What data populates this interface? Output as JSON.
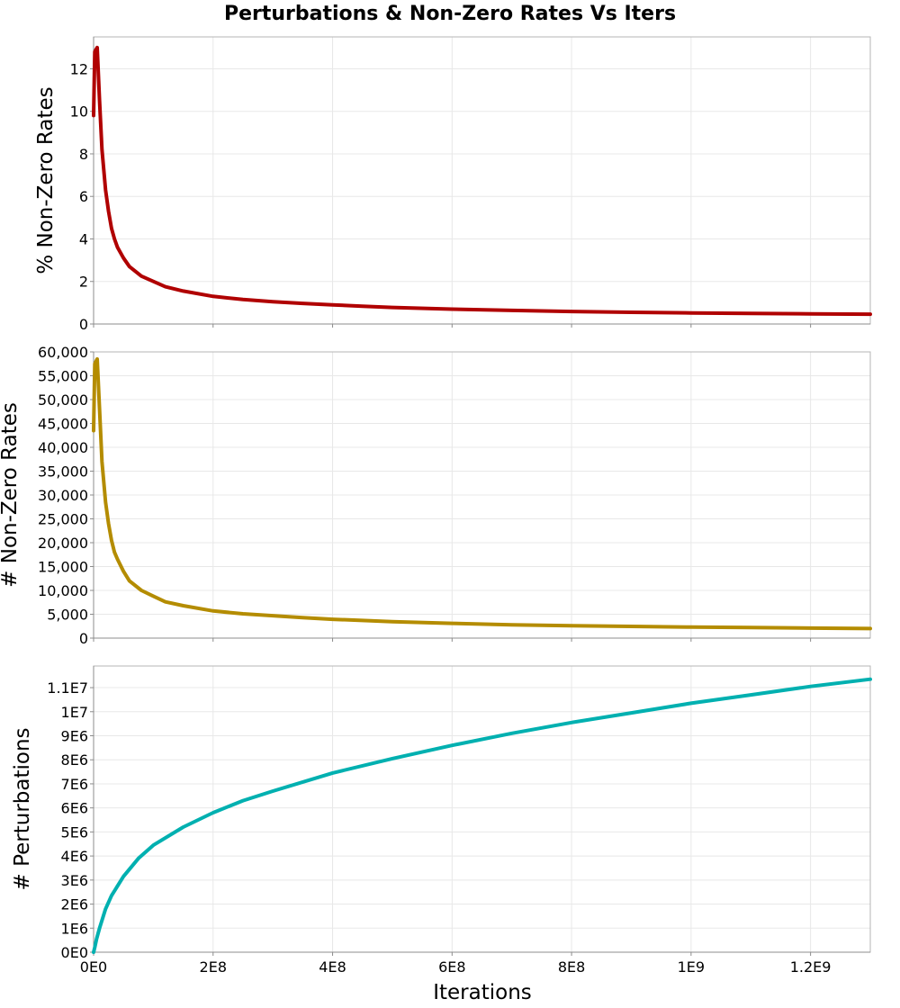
{
  "chart_data": {
    "type": "line",
    "title": "Perturbations & Non-Zero Rates Vs Iters",
    "xlabel": "Iterations",
    "xlim": [
      0,
      1300000000
    ],
    "x_ticks": [
      {
        "value": 0,
        "label": "0E0"
      },
      {
        "value": 200000000,
        "label": "2E8"
      },
      {
        "value": 400000000,
        "label": "4E8"
      },
      {
        "value": 600000000,
        "label": "6E8"
      },
      {
        "value": 800000000,
        "label": "8E8"
      },
      {
        "value": 1000000000,
        "label": "1E9"
      },
      {
        "value": 1200000000,
        "label": "1.2E9"
      }
    ],
    "grid": true,
    "panels": [
      {
        "ylabel": "% Non-Zero Rates",
        "ylim": [
          0,
          13.5
        ],
        "y_ticks": [
          {
            "value": 0,
            "label": "0"
          },
          {
            "value": 2,
            "label": "2"
          },
          {
            "value": 4,
            "label": "4"
          },
          {
            "value": 6,
            "label": "6"
          },
          {
            "value": 8,
            "label": "8"
          },
          {
            "value": 10,
            "label": "10"
          },
          {
            "value": 12,
            "label": "12"
          }
        ],
        "color": "#b00000",
        "series": {
          "x": [
            0,
            2000000,
            6000000,
            10000000,
            14000000,
            20000000,
            25000000,
            30000000,
            35000000,
            40000000,
            50000000,
            60000000,
            80000000,
            100000000,
            120000000,
            150000000,
            200000000,
            250000000,
            300000000,
            350000000,
            400000000,
            450000000,
            500000000,
            600000000,
            700000000,
            800000000,
            900000000,
            1000000000,
            1100000000,
            1200000000,
            1300000000
          ],
          "y": [
            9.8,
            12.8,
            13.0,
            10.5,
            8.2,
            6.3,
            5.3,
            4.5,
            4.0,
            3.6,
            3.1,
            2.7,
            2.25,
            2.0,
            1.75,
            1.55,
            1.3,
            1.15,
            1.05,
            0.97,
            0.9,
            0.84,
            0.78,
            0.7,
            0.64,
            0.59,
            0.55,
            0.52,
            0.5,
            0.48,
            0.46
          ]
        }
      },
      {
        "ylabel": "# Non-Zero Rates",
        "ylim": [
          0,
          60000
        ],
        "y_ticks": [
          {
            "value": 0,
            "label": "0"
          },
          {
            "value": 5000,
            "label": "5,000"
          },
          {
            "value": 10000,
            "label": "10,000"
          },
          {
            "value": 15000,
            "label": "15,000"
          },
          {
            "value": 20000,
            "label": "20,000"
          },
          {
            "value": 25000,
            "label": "25,000"
          },
          {
            "value": 30000,
            "label": "30,000"
          },
          {
            "value": 35000,
            "label": "35,000"
          },
          {
            "value": 40000,
            "label": "40,000"
          },
          {
            "value": 45000,
            "label": "45,000"
          },
          {
            "value": 50000,
            "label": "50,000"
          },
          {
            "value": 55000,
            "label": "55,000"
          },
          {
            "value": 60000,
            "label": "60,000"
          }
        ],
        "color": "#b48c00",
        "series": {
          "x": [
            0,
            2000000,
            6000000,
            10000000,
            14000000,
            20000000,
            25000000,
            30000000,
            35000000,
            40000000,
            50000000,
            60000000,
            80000000,
            100000000,
            120000000,
            150000000,
            200000000,
            250000000,
            300000000,
            350000000,
            400000000,
            450000000,
            500000000,
            600000000,
            700000000,
            800000000,
            900000000,
            1000000000,
            1100000000,
            1200000000,
            1300000000
          ],
          "y": [
            43500,
            57500,
            58500,
            48000,
            37000,
            28500,
            24000,
            20500,
            18000,
            16500,
            14000,
            12000,
            10000,
            8800,
            7600,
            6800,
            5700,
            5100,
            4700,
            4300,
            3950,
            3700,
            3450,
            3100,
            2800,
            2600,
            2450,
            2300,
            2200,
            2100,
            2000
          ]
        }
      },
      {
        "ylabel": "# Perturbations",
        "ylim": [
          0,
          11900000
        ],
        "y_ticks": [
          {
            "value": 0,
            "label": "0E0"
          },
          {
            "value": 1000000,
            "label": "1E6"
          },
          {
            "value": 2000000,
            "label": "2E6"
          },
          {
            "value": 3000000,
            "label": "3E6"
          },
          {
            "value": 4000000,
            "label": "4E6"
          },
          {
            "value": 5000000,
            "label": "5E6"
          },
          {
            "value": 6000000,
            "label": "6E6"
          },
          {
            "value": 7000000,
            "label": "7E6"
          },
          {
            "value": 8000000,
            "label": "8E6"
          },
          {
            "value": 9000000,
            "label": "9E6"
          },
          {
            "value": 10000000,
            "label": "1E7"
          },
          {
            "value": 11000000,
            "label": "1.1E7"
          }
        ],
        "color": "#00b0b0",
        "series": {
          "x": [
            0,
            2000000,
            5000000,
            10000000,
            20000000,
            30000000,
            50000000,
            75000000,
            100000000,
            150000000,
            200000000,
            250000000,
            300000000,
            400000000,
            500000000,
            600000000,
            700000000,
            800000000,
            900000000,
            1000000000,
            1100000000,
            1200000000,
            1300000000
          ],
          "y": [
            0,
            200000,
            550000,
            1000000,
            1800000,
            2350000,
            3150000,
            3900000,
            4450000,
            5200000,
            5800000,
            6300000,
            6700000,
            7450000,
            8050000,
            8600000,
            9100000,
            9550000,
            9950000,
            10350000,
            10700000,
            11050000,
            11350000
          ]
        }
      }
    ]
  }
}
